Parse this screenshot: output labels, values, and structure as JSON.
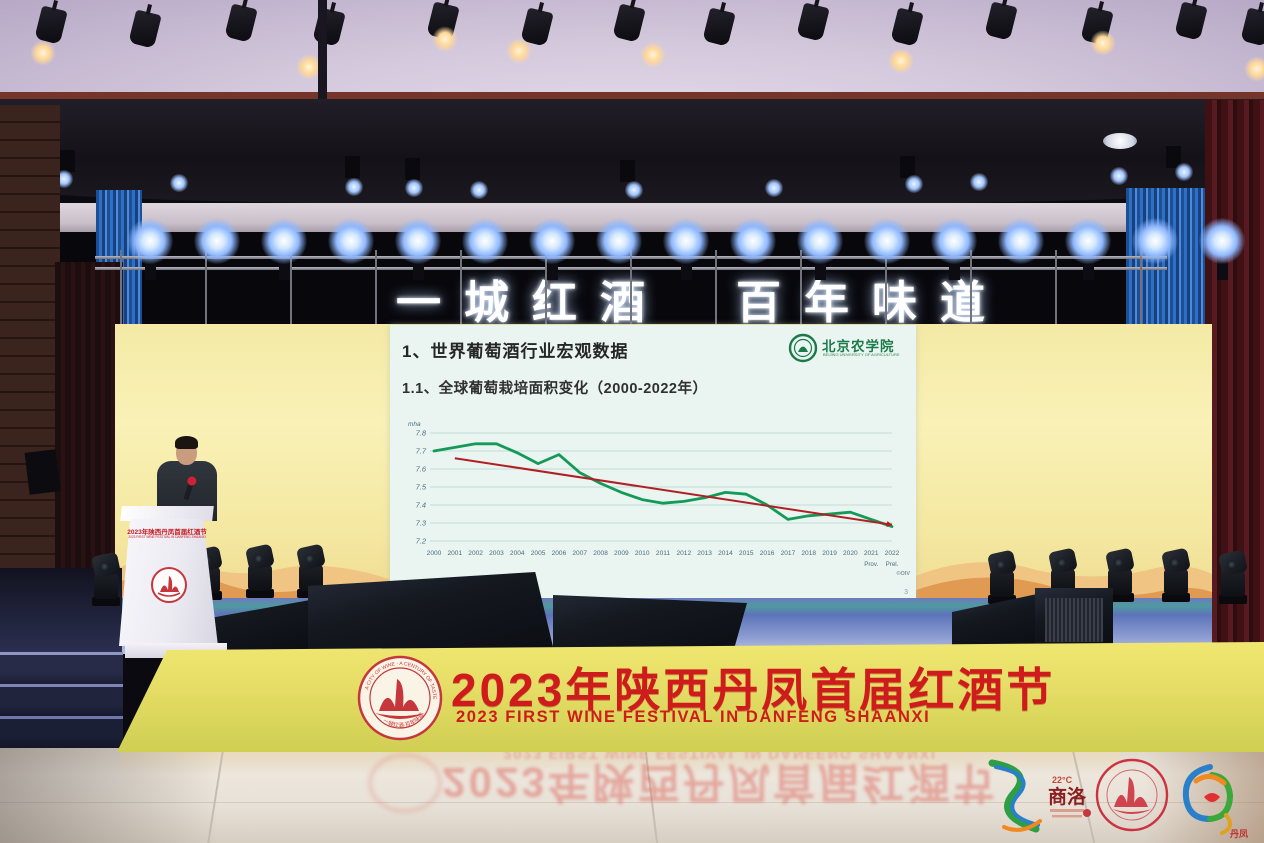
{
  "marquee": {
    "text": "一城红酒　百年味道"
  },
  "slide": {
    "title": "1、世界葡萄酒行业宏观数据",
    "subtitle": "1.1、全球葡萄栽培面积变化（2000-2022年）",
    "logo_text": "北京农学院",
    "logo_subtext": "BEIJING UNIVERSITY OF AGRICULTURE",
    "source": "©OIV",
    "page": "3"
  },
  "chart_data": {
    "type": "line",
    "title": "全球葡萄栽培面积变化（2000-2022年）",
    "ylabel": "mha",
    "ylim": [
      7.2,
      7.8
    ],
    "yticks": [
      7.8,
      7.7,
      7.6,
      7.5,
      7.4,
      7.3,
      7.2
    ],
    "categories": [
      "2000",
      "2001",
      "2002",
      "2003",
      "2004",
      "2005",
      "2006",
      "2007",
      "2008",
      "2009",
      "2010",
      "2011",
      "2012",
      "2013",
      "2014",
      "2015",
      "2016",
      "2017",
      "2018",
      "2019",
      "2020",
      "2021",
      "2022"
    ],
    "xtick_sublabels": [
      "",
      "",
      "",
      "",
      "",
      "",
      "",
      "",
      "",
      "",
      "",
      "",
      "",
      "",
      "",
      "",
      "",
      "",
      "",
      "",
      "",
      "Prov.",
      "Prel."
    ],
    "grid": "horizontal",
    "legend_position": "none",
    "series": [
      {
        "name": "global-vineyard-area-mha",
        "type": "line",
        "color": "#149a58",
        "values": [
          7.7,
          7.72,
          7.74,
          7.74,
          7.69,
          7.63,
          7.68,
          7.58,
          7.52,
          7.47,
          7.43,
          7.41,
          7.42,
          7.44,
          7.47,
          7.46,
          7.4,
          7.32,
          7.34,
          7.35,
          7.36,
          7.32,
          7.28
        ]
      },
      {
        "name": "trend-line",
        "type": "trendline",
        "color": "#b01f24",
        "from": {
          "x": "2001",
          "value": 7.66
        },
        "to": {
          "x": "2022",
          "value": 7.29
        }
      }
    ]
  },
  "apron": {
    "title_cn": "2023年陕西丹凤首届红酒节",
    "title_en": "2023 FIRST WINE FESTIVAL IN DANFENG SHAANXI",
    "emblem_ring_en": "A CITY OF WINE · A CENTURY OF TASTE",
    "emblem_ring_cn": "一城红酒·百年味道"
  },
  "podium": {
    "text_cn": "2023年陕西丹凤首届红酒节",
    "text_en": "2023 FIRST WINE FESTIVAL IN DANFENG SHAANXI"
  },
  "floor": {
    "reflection_cn": "2023年陕西丹凤首届红酒节",
    "reflection_en": "2023 FIRST WINE FESTIVAL IN DANFENG SHAANXI"
  },
  "footer_logos": {
    "shangluo_temp": "22°C",
    "shangluo_name": "商洛",
    "danfeng_name": "丹凤"
  },
  "colors": {
    "accent_red": "#ce1b1b",
    "banner_yellow": "#e4dc64",
    "backdrop_yellow": "#f4eaa6",
    "chart_green": "#149a58",
    "chart_red": "#b01f24",
    "uni_green": "#1a7a4a"
  }
}
